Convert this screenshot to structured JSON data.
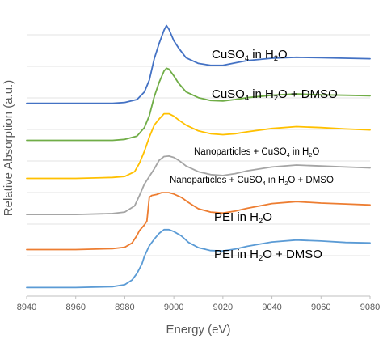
{
  "chart_data": {
    "type": "line",
    "title": "",
    "xlabel": "Energy (eV)",
    "ylabel": "Relative Absorption (a.u.)",
    "xlim": [
      8940,
      9080
    ],
    "x_ticks": [
      "8940",
      "8960",
      "8980",
      "9000",
      "9020",
      "9040",
      "9060",
      "9080"
    ],
    "y_ticks_labeled": false,
    "grid": "horizontal",
    "legend": "none (series labelled inline next to each curve)",
    "series": [
      {
        "name": "CuSO4 in H2O",
        "label": {
          "main": "CuSO",
          "sub1": "4",
          "mid": " in H",
          "sub2": "2",
          "tail": "O"
        },
        "color": "#4472C4",
        "points": [
          [
            8940,
            3.56
          ],
          [
            8960,
            3.56
          ],
          [
            8975,
            3.56
          ],
          [
            8980,
            3.58
          ],
          [
            8985,
            3.64
          ],
          [
            8988,
            3.8
          ],
          [
            8990,
            4.05
          ],
          [
            8992,
            4.5
          ],
          [
            8994,
            4.82
          ],
          [
            8996,
            5.1
          ],
          [
            8997,
            5.2
          ],
          [
            8998,
            5.12
          ],
          [
            9000,
            4.88
          ],
          [
            9002,
            4.72
          ],
          [
            9005,
            4.52
          ],
          [
            9010,
            4.4
          ],
          [
            9015,
            4.36
          ],
          [
            9020,
            4.36
          ],
          [
            9025,
            4.41
          ],
          [
            9030,
            4.46
          ],
          [
            9040,
            4.51
          ],
          [
            9050,
            4.53
          ],
          [
            9060,
            4.52
          ],
          [
            9070,
            4.51
          ],
          [
            9080,
            4.5
          ]
        ]
      },
      {
        "name": "CuSO4 in H2O + DMSO",
        "label": {
          "main": "CuSO",
          "sub1": "4",
          "mid": " in H",
          "sub2": "2",
          "tail": "O + DMSO"
        },
        "color": "#70AD47",
        "points": [
          [
            8940,
            2.78
          ],
          [
            8960,
            2.78
          ],
          [
            8975,
            2.78
          ],
          [
            8980,
            2.8
          ],
          [
            8985,
            2.87
          ],
          [
            8988,
            3.05
          ],
          [
            8990,
            3.3
          ],
          [
            8992,
            3.7
          ],
          [
            8994,
            4.0
          ],
          [
            8996,
            4.24
          ],
          [
            8997,
            4.3
          ],
          [
            8998,
            4.28
          ],
          [
            9000,
            4.14
          ],
          [
            9002,
            3.98
          ],
          [
            9005,
            3.8
          ],
          [
            9010,
            3.68
          ],
          [
            9015,
            3.62
          ],
          [
            9020,
            3.61
          ],
          [
            9025,
            3.64
          ],
          [
            9030,
            3.68
          ],
          [
            9040,
            3.73
          ],
          [
            9050,
            3.76
          ],
          [
            9060,
            3.74
          ],
          [
            9070,
            3.73
          ],
          [
            9080,
            3.72
          ]
        ]
      },
      {
        "name": "Nanoparticles + CuSO4 in H2O",
        "label": {
          "main": "Nanoparticles + CuSO",
          "sub1": "4",
          "mid": " in H",
          "sub2": "2",
          "tail": "O"
        },
        "color": "#FFC000",
        "points": [
          [
            8940,
            1.98
          ],
          [
            8960,
            1.98
          ],
          [
            8975,
            2.0
          ],
          [
            8980,
            2.02
          ],
          [
            8984,
            2.12
          ],
          [
            8986,
            2.3
          ],
          [
            8988,
            2.55
          ],
          [
            8990,
            2.85
          ],
          [
            8992,
            3.1
          ],
          [
            8994,
            3.23
          ],
          [
            8996,
            3.34
          ],
          [
            8998,
            3.34
          ],
          [
            9000,
            3.29
          ],
          [
            9002,
            3.21
          ],
          [
            9005,
            3.1
          ],
          [
            9010,
            2.98
          ],
          [
            9015,
            2.92
          ],
          [
            9020,
            2.9
          ],
          [
            9025,
            2.92
          ],
          [
            9030,
            2.96
          ],
          [
            9040,
            3.03
          ],
          [
            9050,
            3.07
          ],
          [
            9060,
            3.05
          ],
          [
            9070,
            3.02
          ],
          [
            9080,
            3.0
          ]
        ]
      },
      {
        "name": "Nanoparticles + CuSO4 in H2O + DMSO",
        "label": {
          "main": "Nanoparticles + CuSO",
          "sub1": "4",
          "mid": " in H",
          "sub2": "2",
          "tail": "O + DMSO"
        },
        "color": "#A5A5A5",
        "points": [
          [
            8940,
            1.22
          ],
          [
            8960,
            1.22
          ],
          [
            8975,
            1.24
          ],
          [
            8980,
            1.27
          ],
          [
            8984,
            1.4
          ],
          [
            8986,
            1.62
          ],
          [
            8988,
            1.86
          ],
          [
            8990,
            2.02
          ],
          [
            8992,
            2.18
          ],
          [
            8994,
            2.36
          ],
          [
            8996,
            2.44
          ],
          [
            8998,
            2.45
          ],
          [
            9000,
            2.42
          ],
          [
            9002,
            2.36
          ],
          [
            9005,
            2.24
          ],
          [
            9010,
            2.12
          ],
          [
            9015,
            2.06
          ],
          [
            9020,
            2.04
          ],
          [
            9025,
            2.08
          ],
          [
            9030,
            2.14
          ],
          [
            9040,
            2.22
          ],
          [
            9050,
            2.26
          ],
          [
            9060,
            2.24
          ],
          [
            9070,
            2.22
          ],
          [
            9080,
            2.2
          ]
        ]
      },
      {
        "name": "PEI in H2O",
        "label": {
          "main": "PEI in H",
          "sub1": "2",
          "mid": "O",
          "sub2": "",
          "tail": ""
        },
        "color": "#ED7D31",
        "points": [
          [
            8940,
            0.48
          ],
          [
            8960,
            0.48
          ],
          [
            8975,
            0.5
          ],
          [
            8980,
            0.53
          ],
          [
            8983,
            0.62
          ],
          [
            8985,
            0.78
          ],
          [
            8986,
            0.88
          ],
          [
            8988,
            1.0
          ],
          [
            8989,
            1.08
          ],
          [
            8990,
            1.58
          ],
          [
            8991,
            1.62
          ],
          [
            8993,
            1.64
          ],
          [
            8995,
            1.68
          ],
          [
            8998,
            1.68
          ],
          [
            9000,
            1.65
          ],
          [
            9003,
            1.58
          ],
          [
            9006,
            1.47
          ],
          [
            9010,
            1.34
          ],
          [
            9015,
            1.27
          ],
          [
            9020,
            1.25
          ],
          [
            9025,
            1.29
          ],
          [
            9030,
            1.35
          ],
          [
            9040,
            1.45
          ],
          [
            9050,
            1.49
          ],
          [
            9060,
            1.46
          ],
          [
            9070,
            1.44
          ],
          [
            9080,
            1.42
          ]
        ]
      },
      {
        "name": "PEI in H2O + DMSO",
        "label": {
          "main": "PEI in H",
          "sub1": "2",
          "mid": "O + DMSO",
          "sub2": "",
          "tail": ""
        },
        "color": "#5B9BD5",
        "points": [
          [
            8940,
            -0.32
          ],
          [
            8960,
            -0.32
          ],
          [
            8975,
            -0.3
          ],
          [
            8980,
            -0.26
          ],
          [
            8983,
            -0.16
          ],
          [
            8985,
            -0.02
          ],
          [
            8987,
            0.18
          ],
          [
            8988,
            0.34
          ],
          [
            8990,
            0.56
          ],
          [
            8992,
            0.7
          ],
          [
            8994,
            0.82
          ],
          [
            8996,
            0.9
          ],
          [
            8998,
            0.9
          ],
          [
            9000,
            0.86
          ],
          [
            9003,
            0.77
          ],
          [
            9006,
            0.63
          ],
          [
            9010,
            0.52
          ],
          [
            9015,
            0.46
          ],
          [
            9020,
            0.45
          ],
          [
            9025,
            0.49
          ],
          [
            9030,
            0.55
          ],
          [
            9040,
            0.64
          ],
          [
            9050,
            0.68
          ],
          [
            9060,
            0.66
          ],
          [
            9070,
            0.63
          ],
          [
            9080,
            0.62
          ]
        ]
      }
    ]
  }
}
